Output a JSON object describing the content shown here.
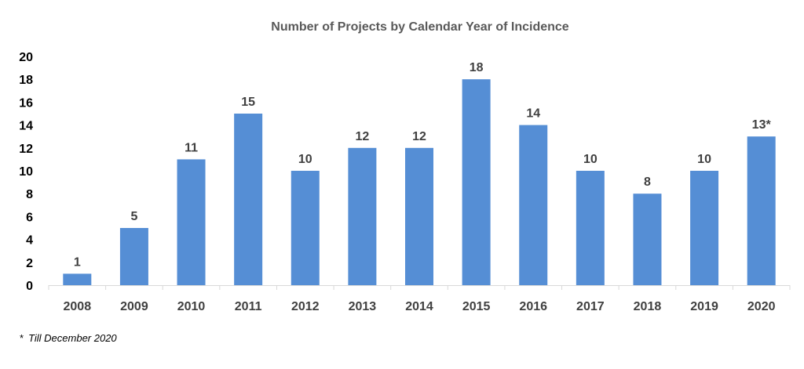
{
  "chart_data": {
    "type": "bar",
    "title": "Number of Projects by Calendar Year of Incidence",
    "xlabel": "",
    "ylabel": "",
    "categories": [
      "2008",
      "2009",
      "2010",
      "2011",
      "2012",
      "2013",
      "2014",
      "2015",
      "2016",
      "2017",
      "2018",
      "2019",
      "2020"
    ],
    "values": [
      1,
      5,
      11,
      15,
      10,
      12,
      12,
      18,
      14,
      10,
      8,
      10,
      13
    ],
    "data_labels": [
      "1",
      "5",
      "11",
      "15",
      "10",
      "12",
      "12",
      "18",
      "14",
      "10",
      "8",
      "10",
      "13*"
    ],
    "ylim": [
      0,
      20
    ],
    "yticks": [
      0,
      2,
      4,
      6,
      8,
      10,
      12,
      14,
      16,
      18,
      20
    ],
    "grid": false,
    "legend": "none",
    "bar_color": "#558ED5"
  },
  "footnote": {
    "mark": "*",
    "text": "Till December 2020"
  }
}
